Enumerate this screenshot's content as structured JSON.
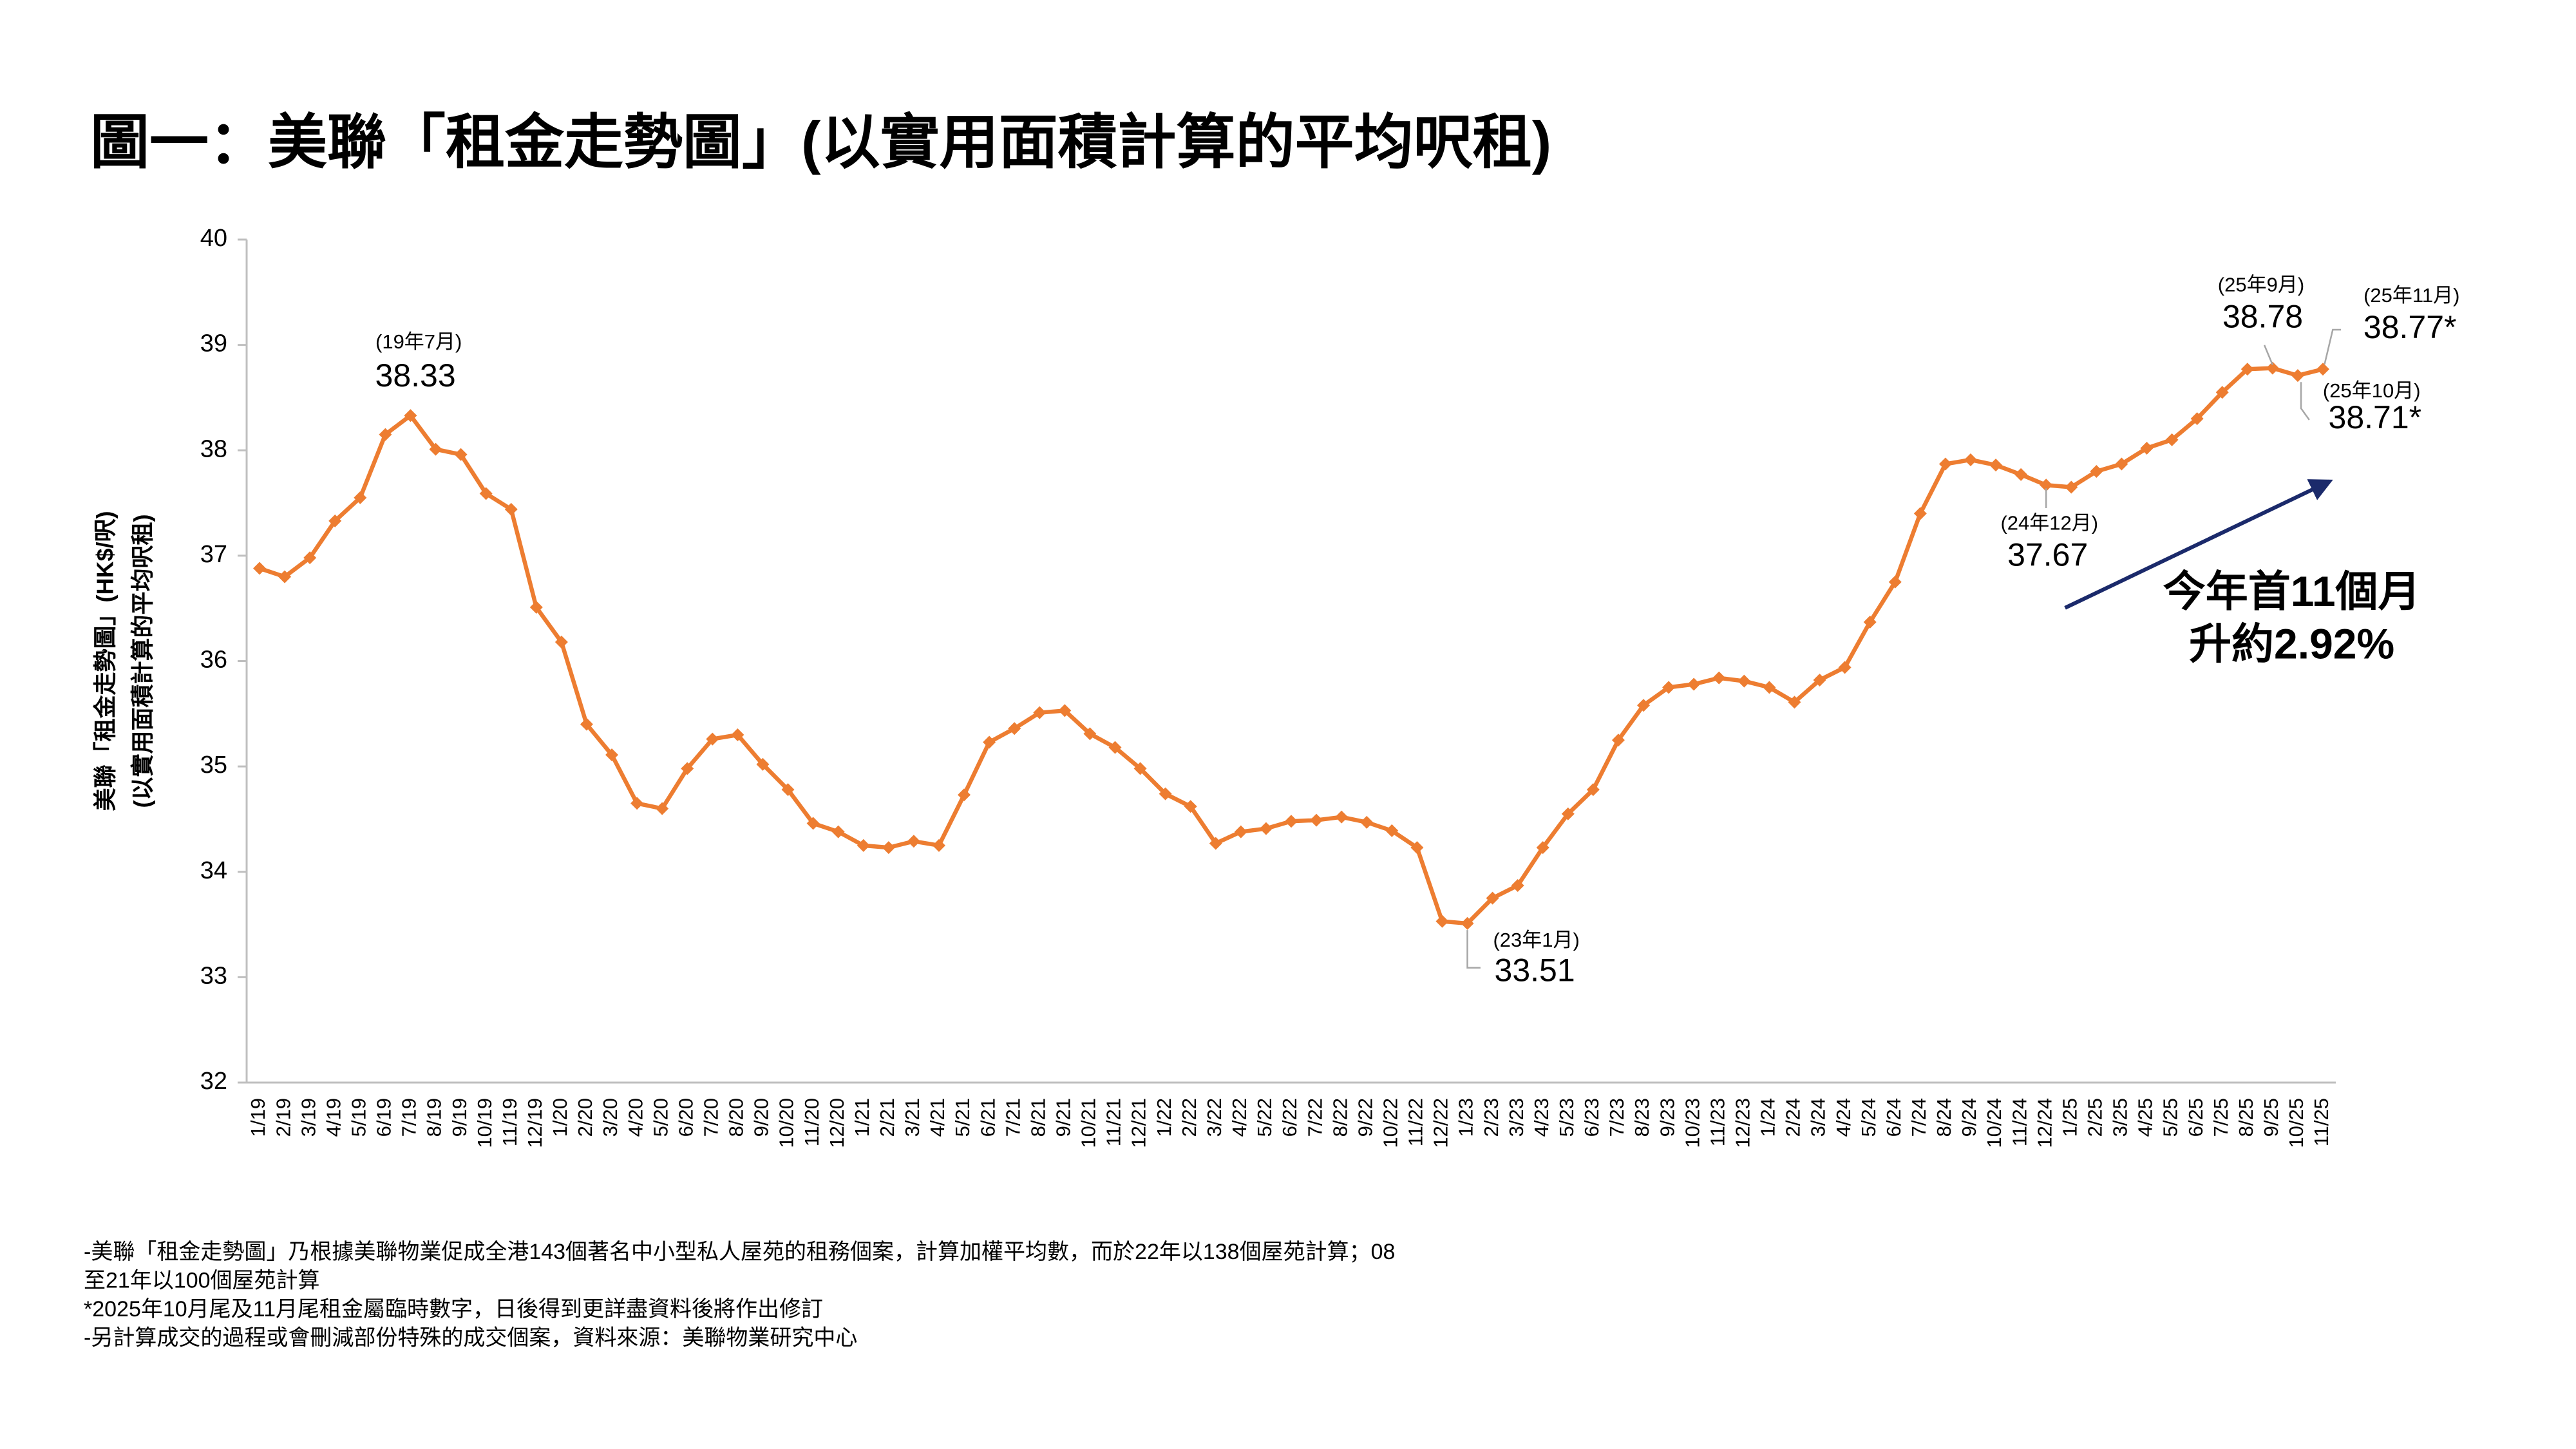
{
  "chart_data": {
    "type": "line",
    "title": "圖一：美聯「租金走勢圖」(以實用面積計算的平均呎租)",
    "y_label_lines": [
      "美聯「租金走勢圖」(HK$/呎)",
      "(以實用面積計算的平均呎租)"
    ],
    "categories": [
      "1/19",
      "2/19",
      "3/19",
      "4/19",
      "5/19",
      "6/19",
      "7/19",
      "8/19",
      "9/19",
      "10/19",
      "11/19",
      "12/19",
      "1/20",
      "2/20",
      "3/20",
      "4/20",
      "5/20",
      "6/20",
      "7/20",
      "8/20",
      "9/20",
      "10/20",
      "11/20",
      "12/20",
      "1/21",
      "2/21",
      "3/21",
      "4/21",
      "5/21",
      "6/21",
      "7/21",
      "8/21",
      "9/21",
      "10/21",
      "11/21",
      "12/21",
      "1/22",
      "2/22",
      "3/22",
      "4/22",
      "5/22",
      "6/22",
      "7/22",
      "8/22",
      "9/22",
      "10/22",
      "11/22",
      "12/22",
      "1/23",
      "2/23",
      "3/23",
      "4/23",
      "5/23",
      "6/23",
      "7/23",
      "8/23",
      "9/23",
      "10/23",
      "11/23",
      "12/23",
      "1/24",
      "2/24",
      "3/24",
      "4/24",
      "5/24",
      "6/24",
      "7/24",
      "8/24",
      "9/24",
      "10/24",
      "11/24",
      "12/24",
      "1/25",
      "2/25",
      "3/25",
      "4/25",
      "5/25",
      "6/25",
      "7/25",
      "8/25",
      "9/25",
      "10/25",
      "11/25"
    ],
    "series": [
      {
        "name": "美聯「租金走勢圖」",
        "color": "#ed7d31",
        "values": [
          36.88,
          36.8,
          36.98,
          37.33,
          37.55,
          38.15,
          38.33,
          38.01,
          37.96,
          37.59,
          37.44,
          36.51,
          36.18,
          35.4,
          35.11,
          34.65,
          34.6,
          34.98,
          35.26,
          35.3,
          35.02,
          34.78,
          34.46,
          34.38,
          34.25,
          34.23,
          34.29,
          34.25,
          34.73,
          35.23,
          35.36,
          35.51,
          35.53,
          35.31,
          35.18,
          34.98,
          34.74,
          34.62,
          34.27,
          34.38,
          34.41,
          34.48,
          34.49,
          34.52,
          34.47,
          34.39,
          34.23,
          33.53,
          33.51,
          33.75,
          33.87,
          34.23,
          34.55,
          34.78,
          35.25,
          35.58,
          35.75,
          35.78,
          35.84,
          35.81,
          35.75,
          35.61,
          35.82,
          35.94,
          36.37,
          36.75,
          37.4,
          37.87,
          37.91,
          37.86,
          37.77,
          37.67,
          37.65,
          37.8,
          37.87,
          38.02,
          38.1,
          38.3,
          38.55,
          38.77,
          38.78,
          38.71,
          38.77
        ],
        "value_labels": [
          null,
          null,
          null,
          null,
          null,
          null,
          "38.33",
          null,
          null,
          null,
          null,
          null,
          null,
          null,
          null,
          null,
          null,
          null,
          null,
          null,
          null,
          null,
          null,
          null,
          null,
          null,
          null,
          null,
          null,
          null,
          null,
          null,
          null,
          null,
          null,
          null,
          null,
          null,
          null,
          null,
          null,
          null,
          null,
          null,
          null,
          null,
          null,
          null,
          "33.51",
          null,
          null,
          null,
          null,
          null,
          null,
          null,
          null,
          null,
          null,
          null,
          null,
          null,
          null,
          null,
          null,
          null,
          null,
          null,
          null,
          null,
          null,
          "37.67",
          null,
          null,
          null,
          null,
          null,
          null,
          null,
          null,
          "38.78",
          "38.71*",
          "38.77*"
        ],
        "point_notes": [
          null,
          null,
          null,
          null,
          null,
          null,
          "(19年7月)",
          null,
          null,
          null,
          null,
          null,
          null,
          null,
          null,
          null,
          null,
          null,
          null,
          null,
          null,
          null,
          null,
          null,
          null,
          null,
          null,
          null,
          null,
          null,
          null,
          null,
          null,
          null,
          null,
          null,
          null,
          null,
          null,
          null,
          null,
          null,
          null,
          null,
          null,
          null,
          null,
          null,
          "(23年1月)",
          null,
          null,
          null,
          null,
          null,
          null,
          null,
          null,
          null,
          null,
          null,
          null,
          null,
          null,
          null,
          null,
          null,
          null,
          null,
          null,
          null,
          null,
          "(24年12月)",
          null,
          null,
          null,
          null,
          null,
          null,
          null,
          null,
          "(25年9月)",
          "(25年10月)",
          "(25年11月)"
        ]
      }
    ],
    "ylim": [
      32,
      40
    ],
    "yticks": [
      32,
      33,
      34,
      35,
      36,
      37,
      38,
      39,
      40
    ],
    "trend_note": [
      "今年首11個月",
      "升約2.92%"
    ],
    "trend_color": "#1b2a6b",
    "footnotes": [
      "-美聯「租金走勢圖」乃根據美聯物業促成全港143個著名中小型私人屋苑的租務個案，計算加權平均數，而於22年以138個屋苑計算；08",
      "至21年以100個屋苑計算",
      "*2025年10月尾及11月尾租金屬臨時數字，日後得到更詳盡資料後將作出修訂",
      "-另計算成交的過程或會刪減部份特殊的成交個案，資料來源：美聯物業研究中心"
    ]
  }
}
